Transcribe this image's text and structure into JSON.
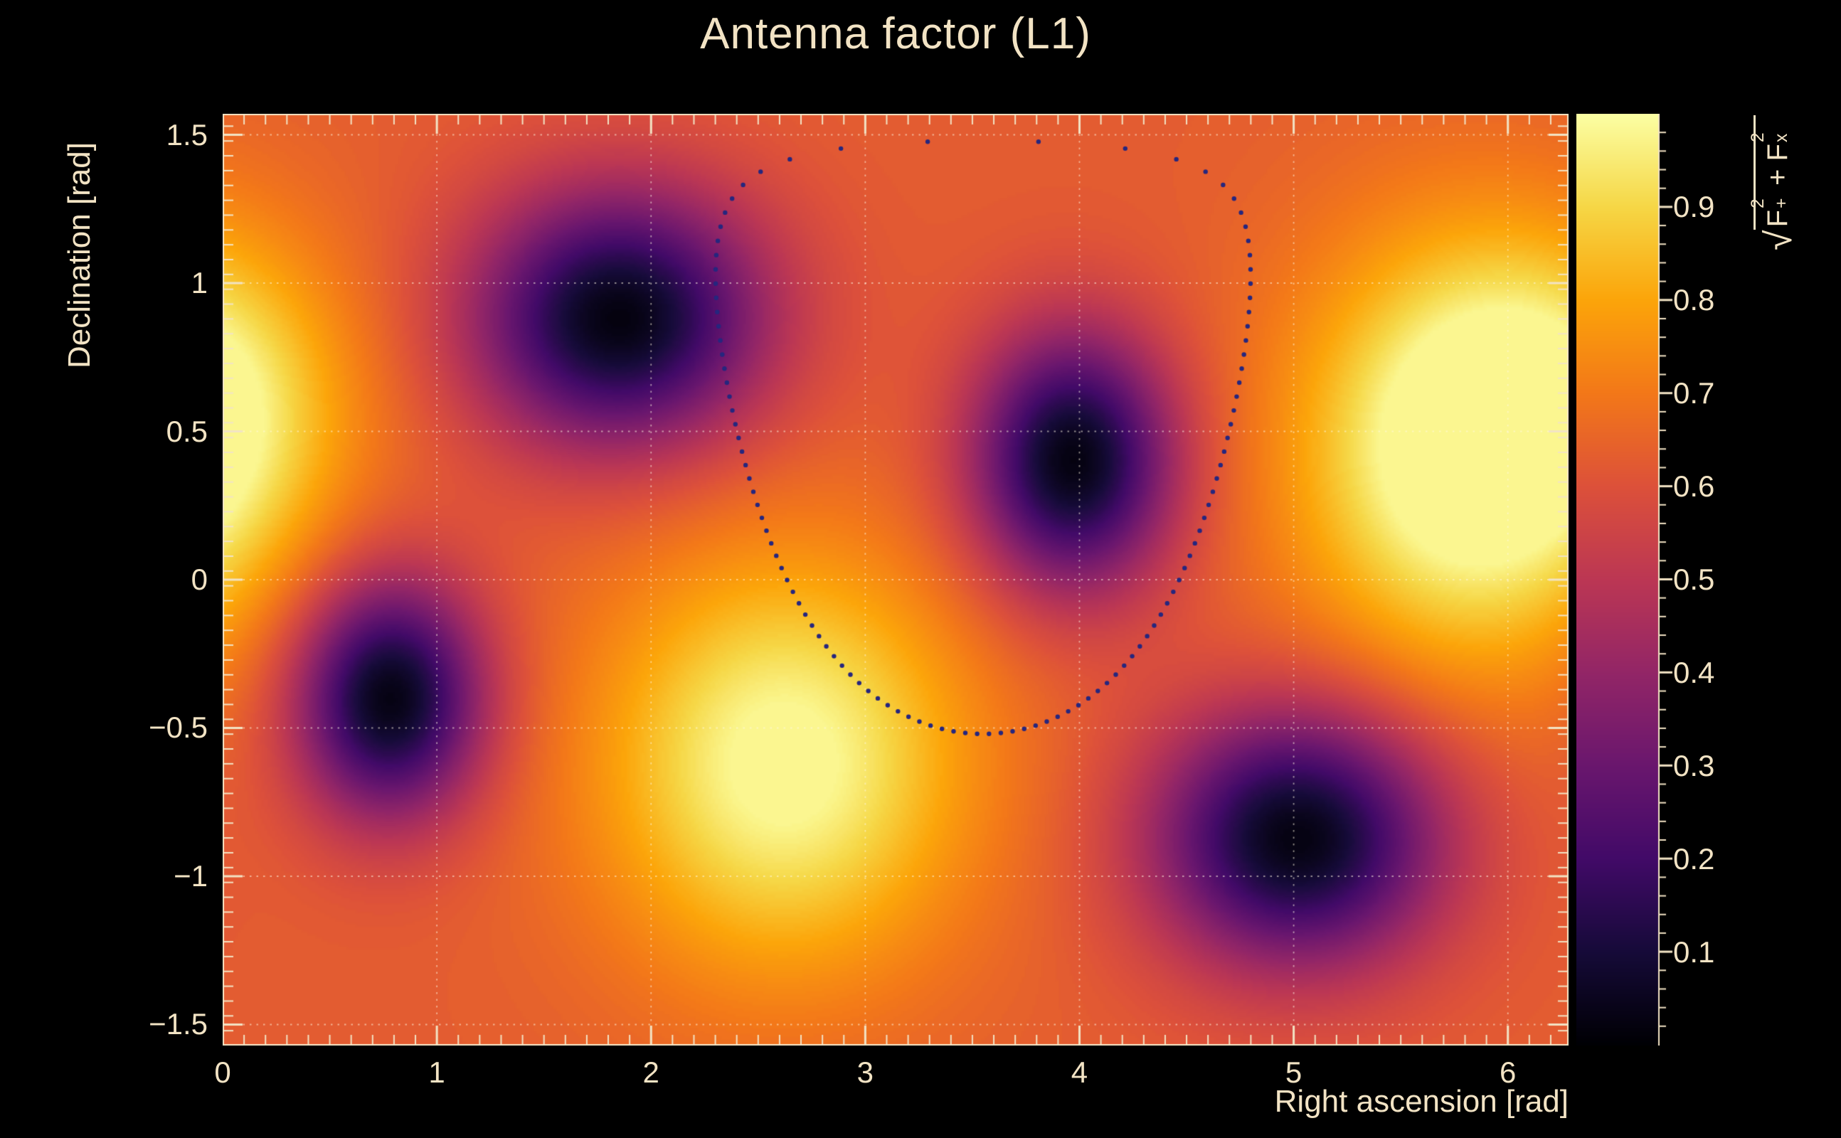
{
  "colors": {
    "background": "#000000",
    "text": "#f2e3c4",
    "frame": "#f2e3c4",
    "grid": "rgba(255,247,225,0.55)",
    "ring_dots": "#26267e"
  },
  "title": "Antenna factor (L1)",
  "axes": {
    "x_label": "Right ascension [rad]",
    "y_label": "Declination [rad]",
    "x_ticks": [
      {
        "v": 0,
        "label": "0"
      },
      {
        "v": 1,
        "label": "1"
      },
      {
        "v": 2,
        "label": "2"
      },
      {
        "v": 3,
        "label": "3"
      },
      {
        "v": 4,
        "label": "4"
      },
      {
        "v": 5,
        "label": "5"
      },
      {
        "v": 6,
        "label": "6"
      }
    ],
    "y_ticks": [
      {
        "v": -1.5,
        "label": "−1.5"
      },
      {
        "v": -1,
        "label": "−1"
      },
      {
        "v": -0.5,
        "label": "−0.5"
      },
      {
        "v": 0,
        "label": "0"
      },
      {
        "v": 0.5,
        "label": "0.5"
      },
      {
        "v": 1,
        "label": "1"
      },
      {
        "v": 1.5,
        "label": "1.5"
      }
    ]
  },
  "colorbar": {
    "ticks": [
      {
        "v": 0.1,
        "label": "0.1"
      },
      {
        "v": 0.2,
        "label": "0.2"
      },
      {
        "v": 0.3,
        "label": "0.3"
      },
      {
        "v": 0.4,
        "label": "0.4"
      },
      {
        "v": 0.5,
        "label": "0.5"
      },
      {
        "v": 0.6,
        "label": "0.6"
      },
      {
        "v": 0.7,
        "label": "0.7"
      },
      {
        "v": 0.8,
        "label": "0.8"
      },
      {
        "v": 0.9,
        "label": "0.9"
      }
    ],
    "label": {
      "sqrt": "√",
      "f1": {
        "base": "F",
        "sup": "2",
        "sub": "+"
      },
      "op": "+",
      "f2": {
        "base": "F",
        "sup": "2",
        "sub": "x"
      }
    }
  },
  "chart_data": {
    "type": "heatmap",
    "title": "Antenna factor (L1)",
    "xlabel": "Right ascension [rad]",
    "ylabel": "Declination [rad]",
    "x_range": [
      0,
      6.2832
    ],
    "y_range": [
      -1.5708,
      1.5708
    ],
    "z_range": [
      0,
      1
    ],
    "z_label": "sqrt(F+^2 + Fx^2)",
    "grid": true,
    "legend": "colorbar-right",
    "palette": "inferno",
    "palette_stops": [
      [
        0.0,
        0,
        0,
        4
      ],
      [
        0.1,
        22,
        11,
        57
      ],
      [
        0.2,
        66,
        10,
        104
      ],
      [
        0.3,
        106,
        23,
        110
      ],
      [
        0.4,
        147,
        38,
        103
      ],
      [
        0.5,
        188,
        55,
        84
      ],
      [
        0.6,
        221,
        81,
        58
      ],
      [
        0.7,
        243,
        120,
        25
      ],
      [
        0.8,
        252,
        165,
        10
      ],
      [
        0.9,
        246,
        215,
        70
      ],
      [
        1.0,
        252,
        255,
        164
      ]
    ],
    "field_model": {
      "description": "Detector antenna-factor magnitude over the sky: smooth orange background (~0.63) with four dark nulls and bright maxima, periodic in right ascension.",
      "base": 0.63,
      "maxima": [
        {
          "ra": 5.78,
          "dec": 0.42,
          "amp": 0.4,
          "sigma": 0.5
        },
        {
          "ra": 2.62,
          "dec": -0.62,
          "amp": 0.38,
          "sigma": 0.48
        },
        {
          "ra": 6.25,
          "dec": 0.6,
          "amp": 0.2,
          "sigma": 0.38
        }
      ],
      "minima": [
        {
          "ra": 1.85,
          "dec": 0.88,
          "depth": 0.61,
          "sigma": 0.3
        },
        {
          "ra": 3.97,
          "dec": 0.4,
          "depth": 0.61,
          "sigma": 0.3
        },
        {
          "ra": 0.78,
          "dec": -0.4,
          "depth": 0.61,
          "sigma": 0.28
        },
        {
          "ra": 5.02,
          "dec": -0.87,
          "depth": 0.61,
          "sigma": 0.3
        }
      ]
    },
    "overlay_ring": {
      "type": "dotted-sky-circle",
      "ra_center": 3.55,
      "dec_center": 0.48,
      "radius_rad": 1.0,
      "n_dots": 110,
      "color": "#26267e"
    }
  }
}
